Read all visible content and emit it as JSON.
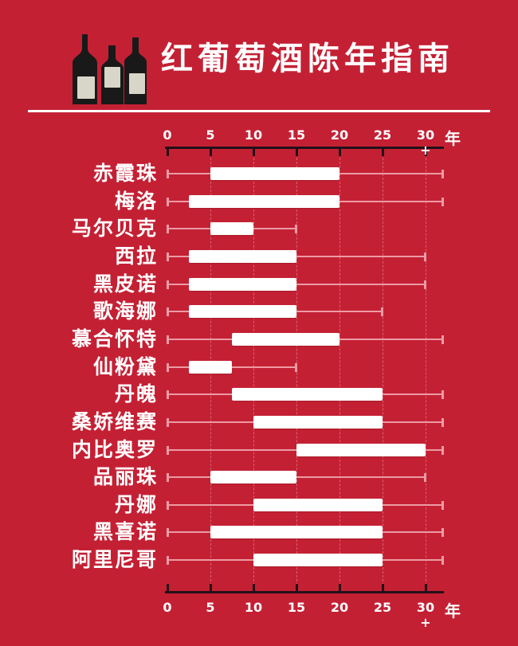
{
  "header": {
    "title": "红葡萄酒陈年指南",
    "icon": "three-wine-bottles"
  },
  "axis": {
    "tick_labels": [
      "0",
      "5",
      "10",
      "15",
      "20",
      "25",
      "30 +"
    ],
    "tick_values": [
      0,
      5,
      10,
      15,
      20,
      25,
      30
    ],
    "unit": "年"
  },
  "chart_data": {
    "type": "bar",
    "subtype": "horizontal-range-bars-with-whiskers",
    "title": "红葡萄酒陈年指南",
    "xlabel": "年",
    "xlim": [
      0,
      32.5
    ],
    "x_ticks": [
      0,
      5,
      10,
      15,
      20,
      25,
      30
    ],
    "x_tick_labels": [
      "0",
      "5",
      "10",
      "15",
      "20",
      "25",
      "30 +"
    ],
    "grid": "dotted-vertical-at-ticks",
    "legend": "none",
    "rows": [
      {
        "label": "赤霞珠",
        "bar": [
          5,
          20
        ],
        "whisker": [
          0,
          32
        ]
      },
      {
        "label": "梅洛",
        "bar": [
          2.5,
          20
        ],
        "whisker": [
          0,
          32
        ]
      },
      {
        "label": "马尔贝克",
        "bar": [
          5,
          10
        ],
        "whisker": [
          0,
          15
        ]
      },
      {
        "label": "西拉",
        "bar": [
          2.5,
          15
        ],
        "whisker": [
          0,
          30
        ]
      },
      {
        "label": "黑皮诺",
        "bar": [
          2.5,
          15
        ],
        "whisker": [
          0,
          30
        ]
      },
      {
        "label": "歌海娜",
        "bar": [
          2.5,
          15
        ],
        "whisker": [
          0,
          25
        ]
      },
      {
        "label": "慕合怀特",
        "bar": [
          7.5,
          20
        ],
        "whisker": [
          0,
          32
        ]
      },
      {
        "label": "仙粉黛",
        "bar": [
          2.5,
          7.5
        ],
        "whisker": [
          0,
          15
        ]
      },
      {
        "label": "丹魄",
        "bar": [
          7.5,
          25
        ],
        "whisker": [
          0,
          32
        ]
      },
      {
        "label": "桑娇维赛",
        "bar": [
          10,
          25
        ],
        "whisker": [
          0,
          32
        ]
      },
      {
        "label": "内比奥罗",
        "bar": [
          15,
          30
        ],
        "whisker": [
          0,
          32
        ]
      },
      {
        "label": "品丽珠",
        "bar": [
          5,
          15
        ],
        "whisker": [
          0,
          30
        ]
      },
      {
        "label": "丹娜",
        "bar": [
          10,
          25
        ],
        "whisker": [
          0,
          32
        ]
      },
      {
        "label": "黑喜诺",
        "bar": [
          5,
          25
        ],
        "whisker": [
          0,
          32
        ]
      },
      {
        "label": "阿里尼哥",
        "bar": [
          10,
          25
        ],
        "whisker": [
          0,
          32
        ]
      }
    ]
  },
  "colors": {
    "background": "#c42034",
    "bar": "#ffffff",
    "whisker": "#ec9ba4",
    "axis": "#241018",
    "text": "#ffffff",
    "divider": "#ffffff",
    "bottle": "#191919",
    "bottle_label": "#d8d6c9"
  }
}
